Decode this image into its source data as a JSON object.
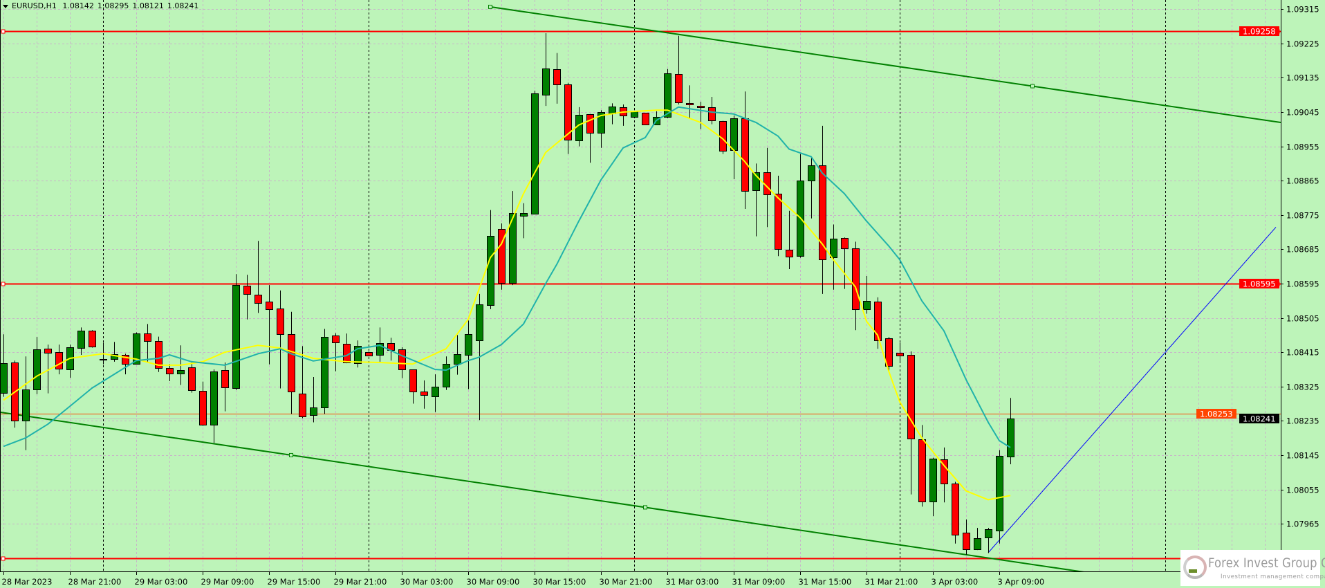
{
  "header": {
    "symbol": "EURUSD,H1",
    "open": "1.08142",
    "high": "1.08295",
    "low": "1.08121",
    "close": "1.08241"
  },
  "logo": {
    "name": "Forex Invest Group OU",
    "tagline": "Investment management company"
  },
  "colors": {
    "background": "#bdf4b9",
    "grid": "#c8b4c8",
    "bull": "#008000",
    "bear": "#ff0000",
    "outline": "#000000",
    "separator": "#000000",
    "ma_fast": "#ffff00",
    "ma_slow": "#20b2aa",
    "channel": "#008000",
    "ray": "#0000ff",
    "level": "#ff0000",
    "ask_line": "#ff4500",
    "bid_line": "#c0c0c0",
    "bid_label_bg": "#000000"
  },
  "chart_data": {
    "type": "candlestick",
    "symbol": "EURUSD",
    "timeframe": "H1",
    "ylim": [
      1.0784,
      1.09339
    ],
    "grid": true,
    "y_ticks": [
      "1.09315",
      "1.09225",
      "1.09135",
      "1.09045",
      "1.08955",
      "1.08865",
      "1.08775",
      "1.08685",
      "1.08595",
      "1.08505",
      "1.08415",
      "1.08325",
      "1.08235",
      "1.08145",
      "1.08055",
      "1.07965"
    ],
    "x_labels": [
      "28 Mar 2023",
      "28 Mar 21:00",
      "29 Mar 03:00",
      "29 Mar 09:00",
      "29 Mar 15:00",
      "29 Mar 21:00",
      "30 Mar 03:00",
      "30 Mar 09:00",
      "30 Mar 15:00",
      "30 Mar 21:00",
      "31 Mar 03:00",
      "31 Mar 09:00",
      "31 Mar 15:00",
      "31 Mar 21:00",
      "3 Apr 03:00",
      "3 Apr 09:00"
    ],
    "candle_fields": [
      "time",
      "open",
      "high",
      "low",
      "close"
    ],
    "candles": [
      [
        "28 Mar 15:00",
        1.08309,
        1.08462,
        1.08298,
        1.08386
      ],
      [
        "28 Mar 16:00",
        1.08388,
        1.08393,
        1.08217,
        1.08235
      ],
      [
        "28 Mar 17:00",
        1.08235,
        1.08404,
        1.08158,
        1.08318
      ],
      [
        "28 Mar 18:00",
        1.08318,
        1.08455,
        1.08305,
        1.08422
      ],
      [
        "28 Mar 19:00",
        1.08424,
        1.08435,
        1.08307,
        1.08413
      ],
      [
        "28 Mar 20:00",
        1.08415,
        1.08435,
        1.08357,
        1.08372
      ],
      [
        "28 Mar 21:00",
        1.0837,
        1.08435,
        1.08348,
        1.08428
      ],
      [
        "28 Mar 22:00",
        1.08426,
        1.0848,
        1.08408,
        1.08471
      ],
      [
        "28 Mar 23:00",
        1.08471,
        1.08473,
        1.08427,
        1.08429
      ],
      [
        "29 Mar 00:00",
        1.08395,
        1.0844,
        1.08383,
        1.08397
      ],
      [
        "29 Mar 01:00",
        1.08397,
        1.08442,
        1.0839,
        1.0841
      ],
      [
        "29 Mar 02:00",
        1.08408,
        1.08411,
        1.08357,
        1.08384
      ],
      [
        "29 Mar 03:00",
        1.08384,
        1.08467,
        1.08383,
        1.08465
      ],
      [
        "29 Mar 04:00",
        1.08465,
        1.08489,
        1.08388,
        1.08444
      ],
      [
        "29 Mar 05:00",
        1.08444,
        1.08456,
        1.08363,
        1.08374
      ],
      [
        "29 Mar 06:00",
        1.08374,
        1.08384,
        1.08339,
        1.08359
      ],
      [
        "29 Mar 07:00",
        1.08359,
        1.08433,
        1.08329,
        1.08368
      ],
      [
        "29 Mar 08:00",
        1.08375,
        1.08392,
        1.08309,
        1.08316
      ],
      [
        "29 Mar 09:00",
        1.08314,
        1.08338,
        1.08222,
        1.08224
      ],
      [
        "29 Mar 10:00",
        1.08224,
        1.0837,
        1.08177,
        1.08365
      ],
      [
        "29 Mar 11:00",
        1.08368,
        1.08388,
        1.0826,
        1.08323
      ],
      [
        "29 Mar 12:00",
        1.08321,
        1.0862,
        1.08316,
        1.08591
      ],
      [
        "29 Mar 13:00",
        1.0859,
        1.08618,
        1.08501,
        1.08568
      ],
      [
        "29 Mar 14:00",
        1.08566,
        1.08707,
        1.08518,
        1.08545
      ],
      [
        "29 Mar 15:00",
        1.08548,
        1.08591,
        1.08383,
        1.08528
      ],
      [
        "29 Mar 16:00",
        1.0853,
        1.08577,
        1.0832,
        1.08462
      ],
      [
        "29 Mar 17:00",
        1.08462,
        1.08521,
        1.08253,
        1.08311
      ],
      [
        "29 Mar 18:00",
        1.08307,
        1.08431,
        1.08242,
        1.08246
      ],
      [
        "29 Mar 19:00",
        1.08251,
        1.0835,
        1.08231,
        1.08271
      ],
      [
        "29 Mar 20:00",
        1.08271,
        1.08476,
        1.08253,
        1.08456
      ],
      [
        "29 Mar 21:00",
        1.08458,
        1.08465,
        1.08365,
        1.0844
      ],
      [
        "29 Mar 22:00",
        1.08437,
        1.08464,
        1.08386,
        1.08388
      ],
      [
        "29 Mar 23:00",
        1.08386,
        1.08446,
        1.08375,
        1.08431
      ],
      [
        "30 Mar 00:00",
        1.08415,
        1.08417,
        1.08404,
        1.08406
      ],
      [
        "30 Mar 01:00",
        1.08408,
        1.0848,
        1.0839,
        1.08438
      ],
      [
        "30 Mar 02:00",
        1.08438,
        1.08453,
        1.08393,
        1.0842
      ],
      [
        "30 Mar 03:00",
        1.08422,
        1.08428,
        1.08347,
        1.0837
      ],
      [
        "30 Mar 04:00",
        1.0837,
        1.0837,
        1.0828,
        1.08312
      ],
      [
        "30 Mar 05:00",
        1.08311,
        1.08341,
        1.08267,
        1.08302
      ],
      [
        "30 Mar 06:00",
        1.083,
        1.08357,
        1.08258,
        1.08325
      ],
      [
        "30 Mar 07:00",
        1.08325,
        1.08404,
        1.08316,
        1.08384
      ],
      [
        "30 Mar 08:00",
        1.08384,
        1.0846,
        1.08356,
        1.0841
      ],
      [
        "30 Mar 09:00",
        1.08408,
        1.08498,
        1.08318,
        1.08462
      ],
      [
        "30 Mar 10:00",
        1.08447,
        1.08568,
        1.08237,
        1.08541
      ],
      [
        "30 Mar 11:00",
        1.08539,
        1.08788,
        1.08528,
        1.08721
      ],
      [
        "30 Mar 12:00",
        1.08739,
        1.08753,
        1.08579,
        1.08597
      ],
      [
        "30 Mar 13:00",
        1.08597,
        1.08838,
        1.08591,
        1.0878
      ],
      [
        "30 Mar 14:00",
        1.08773,
        1.08806,
        1.08714,
        1.0878
      ],
      [
        "30 Mar 15:00",
        1.08779,
        1.09101,
        1.08779,
        1.09094
      ],
      [
        "30 Mar 16:00",
        1.0909,
        1.09252,
        1.09061,
        1.0916
      ],
      [
        "30 Mar 17:00",
        1.09158,
        1.092,
        1.09067,
        1.09117
      ],
      [
        "30 Mar 18:00",
        1.09117,
        1.09122,
        1.08935,
        1.08973
      ],
      [
        "30 Mar 19:00",
        1.08971,
        1.09058,
        1.08955,
        1.09038
      ],
      [
        "30 Mar 20:00",
        1.0904,
        1.0904,
        1.08912,
        1.08991
      ],
      [
        "30 Mar 21:00",
        1.08991,
        1.0905,
        1.08951,
        1.09045
      ],
      [
        "30 Mar 22:00",
        1.09041,
        1.09068,
        1.09013,
        1.09059
      ],
      [
        "30 Mar 23:00",
        1.09058,
        1.09065,
        1.09009,
        1.09036
      ],
      [
        "31 Mar 00:00",
        1.09032,
        1.09049,
        1.0903,
        1.09047
      ],
      [
        "31 Mar 01:00",
        1.09043,
        1.09043,
        1.09013,
        1.09013
      ],
      [
        "31 Mar 02:00",
        1.09013,
        1.09047,
        1.09011,
        1.09032
      ],
      [
        "31 Mar 03:00",
        1.09032,
        1.09158,
        1.09029,
        1.09146
      ],
      [
        "31 Mar 04:00",
        1.09144,
        1.09245,
        1.09065,
        1.0907
      ],
      [
        "31 Mar 05:00",
        1.09068,
        1.09115,
        1.09029,
        1.09065
      ],
      [
        "31 Mar 06:00",
        1.09061,
        1.09072,
        1.09,
        1.09058
      ],
      [
        "31 Mar 07:00",
        1.09058,
        1.09085,
        1.09013,
        1.09023
      ],
      [
        "31 Mar 08:00",
        1.09022,
        1.09022,
        1.08935,
        1.08944
      ],
      [
        "31 Mar 09:00",
        1.08946,
        1.09036,
        1.08869,
        1.09029
      ],
      [
        "31 Mar 10:00",
        1.09029,
        1.09099,
        1.08791,
        1.08838
      ],
      [
        "31 Mar 11:00",
        1.0884,
        1.0891,
        1.08719,
        1.08887
      ],
      [
        "31 Mar 12:00",
        1.08887,
        1.08951,
        1.08743,
        1.08829
      ],
      [
        "31 Mar 13:00",
        1.08831,
        1.08878,
        1.08667,
        1.08685
      ],
      [
        "31 Mar 14:00",
        1.08683,
        1.08786,
        1.08633,
        1.08665
      ],
      [
        "31 Mar 15:00",
        1.08667,
        1.08935,
        1.08663,
        1.08865
      ],
      [
        "31 Mar 16:00",
        1.08865,
        1.08926,
        1.08766,
        1.08906
      ],
      [
        "31 Mar 17:00",
        1.08906,
        1.09009,
        1.08568,
        1.08658
      ],
      [
        "31 Mar 18:00",
        1.08663,
        1.0875,
        1.08579,
        1.08712
      ],
      [
        "31 Mar 19:00",
        1.08714,
        1.08716,
        1.08581,
        1.08687
      ],
      [
        "31 Mar 20:00",
        1.08687,
        1.08705,
        1.08473,
        1.08527
      ],
      [
        "31 Mar 21:00",
        1.08527,
        1.08615,
        1.08516,
        1.0855
      ],
      [
        "31 Mar 22:00",
        1.08548,
        1.08559,
        1.08424,
        1.08447
      ],
      [
        "31 Mar 23:00",
        1.08451,
        1.08455,
        1.08363,
        1.08379
      ],
      [
        "3 Apr 00:00",
        1.08413,
        1.0844,
        1.08392,
        1.08406
      ],
      [
        "3 Apr 01:00",
        1.08408,
        1.08417,
        1.08042,
        1.08188
      ],
      [
        "3 Apr 02:00",
        1.08186,
        1.08224,
        1.0801,
        1.08023
      ],
      [
        "3 Apr 03:00",
        1.08024,
        1.08138,
        1.07985,
        1.08136
      ],
      [
        "3 Apr 04:00",
        1.08134,
        1.08165,
        1.08021,
        1.08071
      ],
      [
        "3 Apr 05:00",
        1.08071,
        1.08075,
        1.07913,
        1.07936
      ],
      [
        "3 Apr 06:00",
        1.07942,
        1.07976,
        1.07884,
        1.07898
      ],
      [
        "3 Apr 07:00",
        1.07898,
        1.07954,
        1.07896,
        1.07927
      ],
      [
        "3 Apr 08:00",
        1.07929,
        1.07954,
        1.07888,
        1.07951
      ],
      [
        "3 Apr 09:00",
        1.07947,
        1.08158,
        1.07913,
        1.08143
      ],
      [
        "3 Apr 10:00",
        1.08142,
        1.08295,
        1.08121,
        1.08241
      ]
    ],
    "moving_averages": [
      {
        "color_key": "ma_fast",
        "points": [
          [
            "28 Mar 15:00",
            1.08289
          ],
          [
            "28 Mar 18:00",
            1.08352
          ],
          [
            "28 Mar 21:00",
            1.08399
          ],
          [
            "29 Mar 00:00",
            1.08411
          ],
          [
            "29 Mar 03:00",
            1.08397
          ],
          [
            "29 Mar 05:00",
            1.08381
          ],
          [
            "29 Mar 07:00",
            1.08381
          ],
          [
            "29 Mar 09:00",
            1.0839
          ],
          [
            "29 Mar 11:00",
            1.08415
          ],
          [
            "29 Mar 14:00",
            1.08433
          ],
          [
            "29 Mar 16:00",
            1.08426
          ],
          [
            "29 Mar 19:00",
            1.08399
          ],
          [
            "29 Mar 22:00",
            1.0839
          ],
          [
            "30 Mar 01:00",
            1.08388
          ],
          [
            "30 Mar 04:00",
            1.08384
          ],
          [
            "30 Mar 07:00",
            1.08424
          ],
          [
            "30 Mar 09:00",
            1.08501
          ],
          [
            "30 Mar 11:00",
            1.08663
          ],
          [
            "30 Mar 12:00",
            1.08699
          ],
          [
            "30 Mar 14:00",
            1.08831
          ],
          [
            "30 Mar 16:00",
            1.08939
          ],
          [
            "30 Mar 19:00",
            1.09011
          ],
          [
            "30 Mar 21:00",
            1.09036
          ],
          [
            "30 Mar 23:00",
            1.09045
          ],
          [
            "31 Mar 02:00",
            1.0905
          ],
          [
            "31 Mar 03:00",
            1.0905
          ],
          [
            "31 Mar 06:00",
            1.09018
          ],
          [
            "31 Mar 08:00",
            1.08975
          ],
          [
            "31 Mar 10:00",
            1.08915
          ],
          [
            "31 Mar 11:00",
            1.08879
          ],
          [
            "31 Mar 13:00",
            1.0882
          ],
          [
            "31 Mar 15:00",
            1.08768
          ],
          [
            "31 Mar 17:00",
            1.08699
          ],
          [
            "31 Mar 18:00",
            1.08658
          ],
          [
            "31 Mar 20:00",
            1.08586
          ],
          [
            "31 Mar 21:00",
            1.08496
          ],
          [
            "31 Mar 22:00",
            1.0846
          ],
          [
            "31 Mar 23:00",
            1.08366
          ],
          [
            "3 Apr 00:00",
            1.08285
          ],
          [
            "3 Apr 02:00",
            1.0819
          ],
          [
            "3 Apr 04:00",
            1.08118
          ],
          [
            "3 Apr 06:00",
            1.08051
          ],
          [
            "3 Apr 08:00",
            1.08028
          ],
          [
            "3 Apr 10:00",
            1.08039
          ]
        ]
      },
      {
        "color_key": "ma_slow",
        "points": [
          [
            "28 Mar 15:00",
            1.08168
          ],
          [
            "28 Mar 17:00",
            1.0819
          ],
          [
            "28 Mar 19:00",
            1.08226
          ],
          [
            "28 Mar 21:00",
            1.08273
          ],
          [
            "28 Mar 23:00",
            1.08321
          ],
          [
            "29 Mar 01:00",
            1.08357
          ],
          [
            "29 Mar 03:00",
            1.08393
          ],
          [
            "29 Mar 05:00",
            1.08399
          ],
          [
            "29 Mar 06:00",
            1.08408
          ],
          [
            "29 Mar 08:00",
            1.0839
          ],
          [
            "29 Mar 11:00",
            1.08381
          ],
          [
            "29 Mar 14:00",
            1.08411
          ],
          [
            "29 Mar 16:00",
            1.08424
          ],
          [
            "29 Mar 17:00",
            1.08411
          ],
          [
            "29 Mar 19:00",
            1.08392
          ],
          [
            "29 Mar 22:00",
            1.08406
          ],
          [
            "29 Mar 23:00",
            1.08424
          ],
          [
            "30 Mar 01:00",
            1.08433
          ],
          [
            "30 Mar 03:00",
            1.08406
          ],
          [
            "30 Mar 06:00",
            1.0837
          ],
          [
            "30 Mar 07:00",
            1.08368
          ],
          [
            "30 Mar 09:00",
            1.08393
          ],
          [
            "30 Mar 10:00",
            1.08402
          ],
          [
            "30 Mar 12:00",
            1.08435
          ],
          [
            "30 Mar 14:00",
            1.08489
          ],
          [
            "30 Mar 16:00",
            1.08595
          ],
          [
            "30 Mar 17:00",
            1.08645
          ],
          [
            "30 Mar 19:00",
            1.08759
          ],
          [
            "30 Mar 21:00",
            1.08867
          ],
          [
            "30 Mar 23:00",
            1.08951
          ],
          [
            "31 Mar 01:00",
            1.08978
          ],
          [
            "31 Mar 02:00",
            1.09023
          ],
          [
            "31 Mar 04:00",
            1.09058
          ],
          [
            "31 Mar 07:00",
            1.09045
          ],
          [
            "31 Mar 09:00",
            1.0904
          ],
          [
            "31 Mar 11:00",
            1.09018
          ],
          [
            "31 Mar 13:00",
            1.08982
          ],
          [
            "31 Mar 14:00",
            1.08948
          ],
          [
            "31 Mar 16:00",
            1.08928
          ],
          [
            "31 Mar 17:00",
            1.08885
          ],
          [
            "31 Mar 19:00",
            1.08831
          ],
          [
            "31 Mar 21:00",
            1.08759
          ],
          [
            "31 Mar 23:00",
            1.08694
          ],
          [
            "3 Apr 00:00",
            1.08658
          ],
          [
            "3 Apr 02:00",
            1.0855
          ],
          [
            "3 Apr 04:00",
            1.08471
          ],
          [
            "3 Apr 06:00",
            1.08343
          ],
          [
            "3 Apr 08:00",
            1.08231
          ],
          [
            "3 Apr 09:00",
            1.08183
          ],
          [
            "3 Apr 10:00",
            1.08165
          ]
        ]
      }
    ],
    "horizontal_levels": [
      {
        "price": 1.09258,
        "label": "1.09258",
        "color_key": "level"
      },
      {
        "price": 1.08595,
        "label": "1.08595",
        "color_key": "level"
      },
      {
        "price": 1.07874,
        "label": "",
        "color_key": "level"
      }
    ],
    "ask_line": {
      "price": 1.08253,
      "label": "1.08253"
    },
    "bid_line": {
      "price": 1.08241,
      "label": "1.08241"
    },
    "trend_lines": [
      {
        "name": "channel-upper",
        "color_key": "channel",
        "from": [
          "30 Mar 11:00",
          1.09321
        ],
        "to": [
          "3 Apr 12:00",
          1.09113
        ],
        "extend": "right"
      },
      {
        "name": "channel-lower",
        "color_key": "channel",
        "from": [
          "29 Mar 17:00",
          1.08145
        ],
        "to": [
          "31 Mar 01:00",
          1.08008
        ],
        "extend": "both"
      },
      {
        "name": "blue-ray",
        "color_key": "ray",
        "from": [
          "3 Apr 08:00",
          1.07889
        ],
        "to": [
          "4 Apr 10:00",
          1.08743
        ],
        "extend": "none"
      }
    ]
  }
}
